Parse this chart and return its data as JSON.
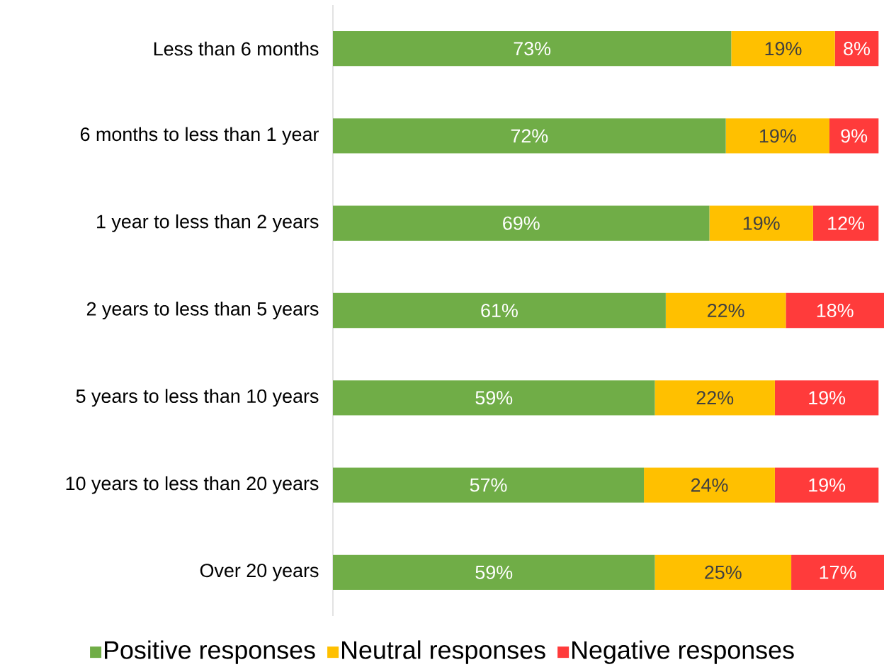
{
  "chart_data": {
    "type": "bar",
    "orientation": "horizontal",
    "stacked": true,
    "legend": "bottom",
    "categories": [
      "Less than 6 months",
      "6 months to less than 1 year",
      "1 year to less than 2 years",
      "2 years to less than 5 years",
      "5 years to less than 10 years",
      "10 years to less than 20 years",
      "Over 20 years"
    ],
    "series": [
      {
        "name": "Positive responses",
        "color": "#70ad47",
        "values": [
          73,
          72,
          69,
          61,
          59,
          57,
          59
        ],
        "value_labels": [
          "73%",
          "72%",
          "69%",
          "61%",
          "59%",
          "57%",
          "59%"
        ]
      },
      {
        "name": "Neutral responses",
        "color": "#ffc000",
        "values": [
          19,
          19,
          19,
          22,
          22,
          24,
          25
        ],
        "value_labels": [
          "19%",
          "19%",
          "19%",
          "22%",
          "22%",
          "24%",
          "25%"
        ]
      },
      {
        "name": "Negative responses",
        "color": "#ff3b3b",
        "values": [
          8,
          9,
          12,
          18,
          19,
          19,
          17
        ],
        "value_labels": [
          "8%",
          "9%",
          "12%",
          "18%",
          "19%",
          "19%",
          "17%"
        ]
      }
    ]
  }
}
